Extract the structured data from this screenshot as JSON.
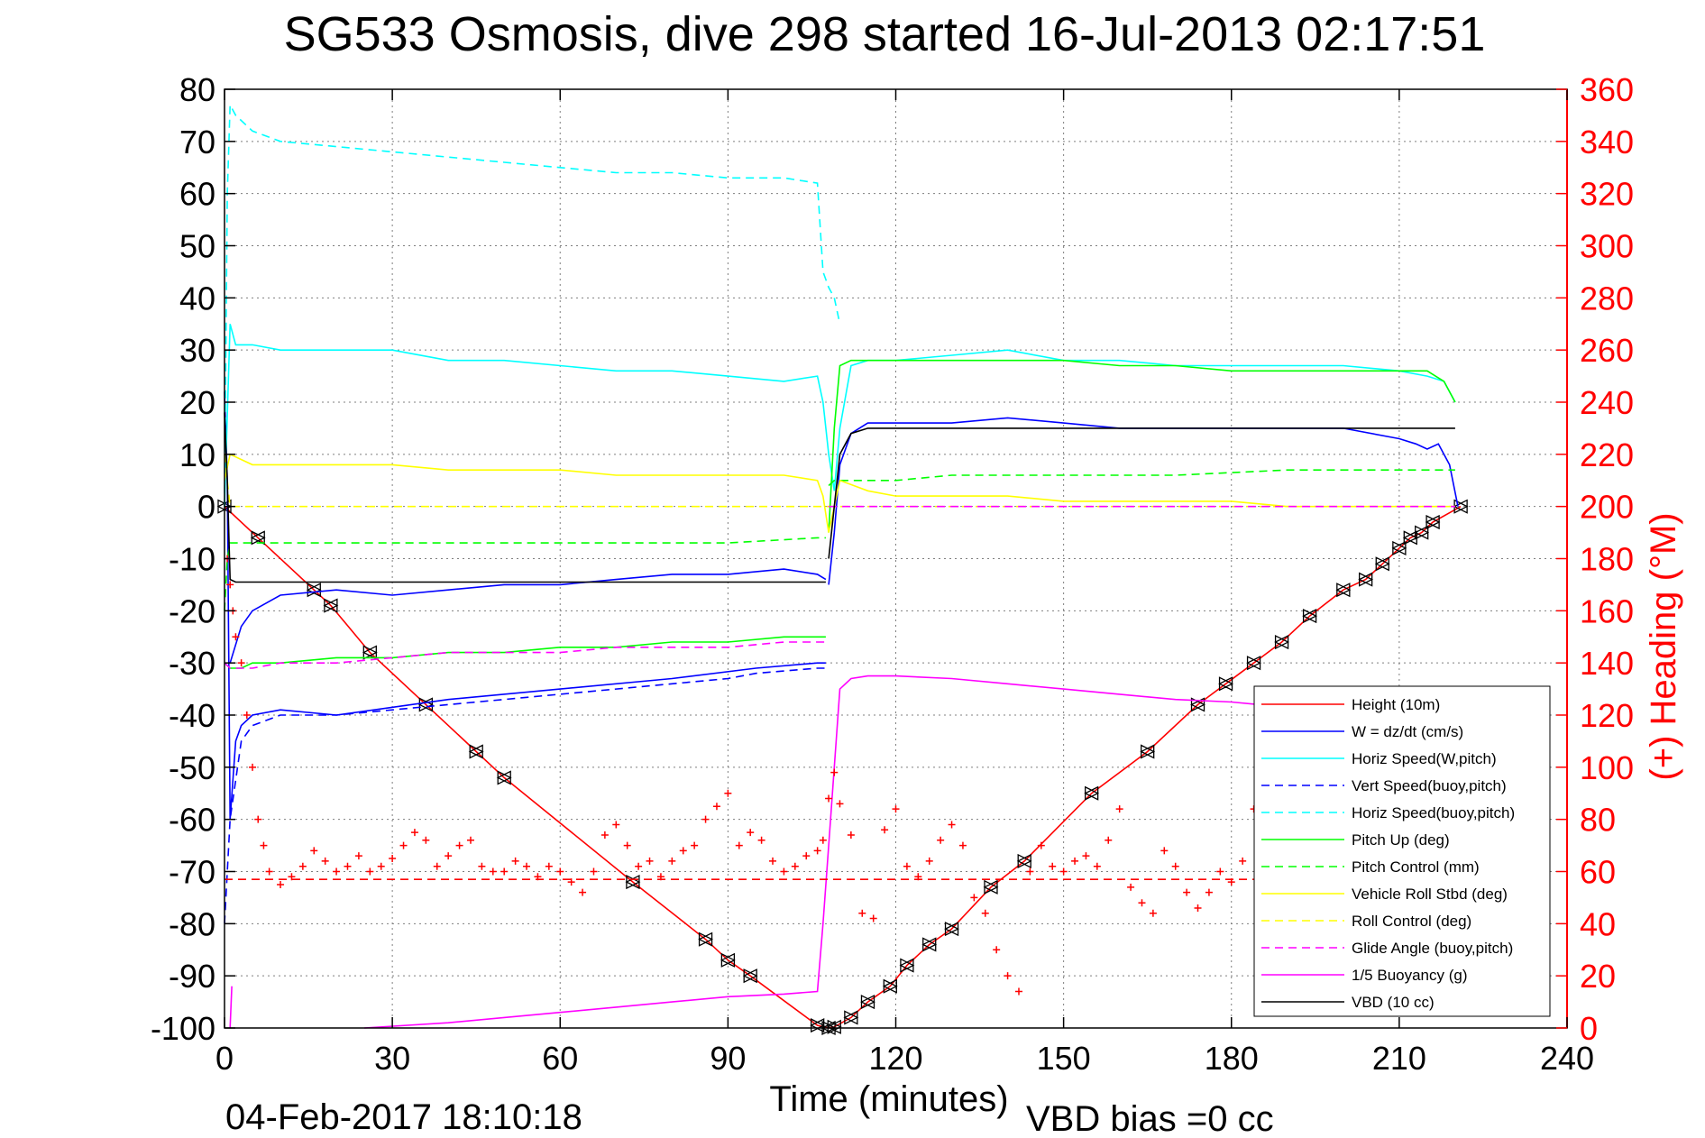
{
  "chart_data": {
    "type": "line",
    "title": "SG533 Osmosis, dive 298 started 16-Jul-2013 02:17:51",
    "xlabel": "Time (minutes)",
    "ylabel": "",
    "y2label": "(+) Heading (°M)",
    "footer_date": "04-Feb-2017 18:10:18",
    "footer_vbd": "VBD bias =0 cc",
    "xlim": [
      0,
      240
    ],
    "ylim": [
      -100,
      80
    ],
    "y2lim": [
      0,
      360
    ],
    "xticks": [
      0,
      30,
      60,
      90,
      120,
      150,
      180,
      210,
      240
    ],
    "yticks": [
      80,
      70,
      60,
      50,
      40,
      30,
      20,
      10,
      0,
      -10,
      -20,
      -30,
      -40,
      -50,
      -60,
      -70,
      -80,
      -90,
      -100
    ],
    "y2ticks": [
      360,
      340,
      320,
      300,
      280,
      260,
      240,
      220,
      200,
      180,
      160,
      140,
      120,
      100,
      80,
      60,
      40,
      20,
      0
    ],
    "grid": true,
    "legend_position": "bottom-right",
    "colors": {
      "axis": "#000000",
      "heading_axis": "#ff0000",
      "grid": "#7f7f7f"
    },
    "series": [
      {
        "name": "Height (10m)",
        "color": "#ff0000",
        "style": "solid",
        "markers": "triangles",
        "x": [
          0,
          6,
          16,
          19,
          26,
          36,
          45,
          50,
          73,
          86,
          90,
          94,
          106,
          108,
          109,
          112,
          115,
          119,
          122,
          126,
          130,
          137,
          143,
          155,
          165,
          174,
          179,
          184,
          189,
          194,
          200,
          204,
          207,
          210,
          212,
          214,
          216,
          221
        ],
        "y": [
          0,
          -6,
          -16,
          -19,
          -28,
          -38,
          -47,
          -52,
          -72,
          -83,
          -87,
          -90,
          -99.5,
          -100,
          -99.8,
          -98,
          -95,
          -92,
          -88,
          -84,
          -81,
          -73,
          -68,
          -55,
          -47,
          -38,
          -34,
          -30,
          -26,
          -21,
          -16,
          -14,
          -11,
          -8,
          -6,
          -5,
          -3,
          0
        ]
      },
      {
        "name": "W = dz/dt (cm/s)",
        "color": "#0000ff",
        "style": "solid",
        "segments": [
          {
            "x": [
              0,
              0.5,
              1,
              2,
              3,
              5,
              10,
              20,
              40,
              60,
              80,
              95,
              106,
              107.5
            ],
            "y": [
              22,
              5,
              -60,
              -45,
              -42,
              -40,
              -39,
              -40,
              -37,
              -35,
              -33,
              -31,
              -30,
              -30
            ]
          },
          {
            "x": [
              1,
              3,
              5,
              10,
              20,
              30,
              40,
              50,
              60,
              70,
              80,
              90,
              100,
              106,
              107.5
            ],
            "y": [
              -30,
              -23,
              -20,
              -17,
              -16,
              -17,
              -16,
              -15,
              -15,
              -14,
              -13,
              -13,
              -12,
              -13,
              -14
            ]
          },
          {
            "x": [
              108,
              109,
              110,
              112,
              115,
              120,
              130,
              140,
              150,
              160,
              170,
              180,
              190,
              200,
              210,
              213,
              215,
              217,
              219,
              220.5
            ],
            "y": [
              -15,
              -5,
              8,
              14,
              16,
              16,
              16,
              17,
              16,
              15,
              15,
              15,
              15,
              15,
              13,
              12,
              11,
              12,
              8,
              0
            ]
          }
        ]
      },
      {
        "name": "Horiz Speed(W,pitch)",
        "color": "#00ffff",
        "style": "solid",
        "x": [
          0,
          1,
          2,
          5,
          10,
          20,
          30,
          40,
          50,
          60,
          70,
          80,
          90,
          100,
          106,
          107,
          108,
          109,
          110,
          112,
          115,
          120,
          130,
          140,
          150,
          160,
          170,
          180,
          190,
          200,
          210,
          215,
          218,
          220
        ],
        "y": [
          0,
          35,
          31,
          31,
          30,
          30,
          30,
          28,
          28,
          27,
          26,
          26,
          25,
          24,
          25,
          20,
          10,
          3,
          15,
          27,
          28,
          28,
          29,
          30,
          28,
          28,
          27,
          27,
          27,
          27,
          26,
          25,
          24,
          20
        ]
      },
      {
        "name": "Vert Speed(buoy,pitch)",
        "color": "#0000ff",
        "style": "dashed",
        "x": [
          0,
          1,
          3,
          5,
          10,
          20,
          40,
          60,
          80,
          90,
          95,
          106,
          107.5
        ],
        "y": [
          -80,
          -60,
          -45,
          -42,
          -40,
          -40,
          -38,
          -36,
          -34,
          -33,
          -32,
          -31,
          -31
        ]
      },
      {
        "name": "Horiz Speed(buoy,pitch)",
        "color": "#00ffff",
        "style": "dashed",
        "x": [
          0,
          0.5,
          1,
          2,
          5,
          10,
          20,
          30,
          40,
          50,
          60,
          70,
          80,
          90,
          100,
          106,
          107,
          108,
          109,
          110
        ],
        "y": [
          0,
          60,
          77,
          75,
          72,
          70,
          69,
          68,
          67,
          66,
          65,
          64,
          64,
          63,
          63,
          62,
          45,
          42,
          40,
          35
        ]
      },
      {
        "name": "Pitch Up (deg)",
        "color": "#00ff00",
        "style": "solid",
        "segments": [
          {
            "x": [
              0,
              1,
              3,
              5,
              10,
              20,
              30,
              40,
              50,
              60,
              70,
              80,
              90,
              100,
              106,
              107.5
            ],
            "y": [
              -30,
              -31,
              -31,
              -30,
              -30,
              -29,
              -29,
              -28,
              -28,
              -27,
              -27,
              -26,
              -26,
              -25,
              -25,
              -25
            ]
          },
          {
            "x": [
              108,
              109,
              110,
              112,
              115,
              120,
              130,
              140,
              150,
              160,
              170,
              180,
              190,
              200,
              210,
              215,
              218,
              220
            ],
            "y": [
              -5,
              15,
              27,
              28,
              28,
              28,
              28,
              28,
              28,
              27,
              27,
              26,
              26,
              26,
              26,
              26,
              24,
              20
            ]
          }
        ]
      },
      {
        "name": "Pitch Control (mm)",
        "color": "#00ff00",
        "style": "dashed",
        "segments": [
          {
            "x": [
              0,
              0.5,
              1,
              5,
              10,
              30,
              50,
              70,
              90,
              106,
              107.5
            ],
            "y": [
              -20,
              -10,
              -7,
              -7,
              -7,
              -7,
              -7,
              -7,
              -7,
              -6,
              -6
            ]
          },
          {
            "x": [
              108,
              109,
              110,
              120,
              130,
              150,
              170,
              190,
              210,
              220
            ],
            "y": [
              4,
              5,
              5,
              5,
              6,
              6,
              6,
              7,
              7,
              7
            ]
          }
        ]
      },
      {
        "name": "Vehicle Roll Stbd (deg)",
        "color": "#ffff00",
        "style": "solid",
        "x": [
          0,
          1,
          5,
          10,
          20,
          30,
          40,
          50,
          60,
          70,
          80,
          90,
          100,
          106,
          107,
          108,
          109,
          110,
          115,
          120,
          130,
          140,
          150,
          160,
          170,
          180,
          190,
          200,
          210,
          218,
          220
        ],
        "y": [
          5,
          10,
          8,
          8,
          8,
          8,
          7,
          7,
          7,
          6,
          6,
          6,
          6,
          5,
          2,
          -5,
          0,
          5,
          3,
          2,
          2,
          2,
          1,
          1,
          1,
          1,
          0,
          0,
          0,
          0,
          0
        ]
      },
      {
        "name": "Roll Control (deg)",
        "color": "#ffff00",
        "style": "dashed",
        "x": [
          0,
          1,
          2,
          5,
          10,
          30,
          50,
          70,
          90,
          106,
          108,
          110,
          120,
          140,
          160,
          180,
          200,
          220
        ],
        "y": [
          10,
          0,
          0,
          0,
          0,
          0,
          0,
          0,
          0,
          0,
          0,
          0,
          0,
          0,
          0,
          0,
          0,
          0
        ]
      },
      {
        "name": "Glide Angle (buoy,pitch)",
        "color": "#ff00ff",
        "style": "dashed",
        "segments": [
          {
            "x": [
              0,
              1,
              3,
              5,
              10,
              20,
              30,
              40,
              50,
              60,
              70,
              80,
              90,
              100,
              106,
              107.5
            ],
            "y": [
              -30,
              -31,
              -31,
              -31,
              -30,
              -30,
              -29,
              -28,
              -28,
              -28,
              -27,
              -27,
              -27,
              -26,
              -26,
              -26
            ]
          },
          {
            "x": [
              108,
              110,
              120,
              150,
              180,
              210,
              220
            ],
            "y": [
              0,
              0,
              0,
              0,
              0,
              0,
              0
            ]
          }
        ]
      },
      {
        "name": "1/5 Buoyancy (g)",
        "color": "#ff00ff",
        "style": "solid",
        "segments": [
          {
            "x": [
              1,
              1.3
            ],
            "y": [
              -100,
              -92
            ]
          },
          {
            "x": [
              25,
              40,
              50,
              60,
              70,
              80,
              90,
              100,
              106,
              107,
              108,
              109,
              110,
              112,
              115,
              120,
              130,
              140,
              150,
              160,
              170,
              180,
              185
            ],
            "y": [
              -100,
              -99,
              -98,
              -97,
              -96,
              -95,
              -94,
              -93.5,
              -93,
              -80,
              -65,
              -50,
              -35,
              -33,
              -32.5,
              -32.5,
              -33,
              -34,
              -35,
              -36,
              -37,
              -37.5,
              -38
            ]
          }
        ]
      },
      {
        "name": "VBD (10 cc)",
        "color": "#000000",
        "style": "solid",
        "segments": [
          {
            "x": [
              0,
              0.5,
              1,
              2,
              5,
              10,
              30,
              50,
              70,
              90,
              106,
              107.5
            ],
            "y": [
              18,
              5,
              -14,
              -14.5,
              -14.5,
              -14.5,
              -14.5,
              -14.5,
              -14.5,
              -14.5,
              -14.5,
              -14.5
            ]
          },
          {
            "x": [
              108,
              109,
              110,
              112,
              115,
              120,
              150,
              180,
              210,
              220
            ],
            "y": [
              -10,
              0,
              10,
              14,
              15,
              15,
              15,
              15,
              15,
              15
            ]
          }
        ]
      }
    ],
    "extra_series": [
      {
        "name": "Heading +",
        "axis": "y2",
        "color": "#ff0000",
        "style": "markers",
        "x": [
          0.5,
          1,
          1.5,
          2,
          3,
          4,
          5,
          6,
          7,
          8,
          10,
          12,
          14,
          16,
          18,
          20,
          22,
          24,
          26,
          28,
          30,
          32,
          34,
          36,
          38,
          40,
          42,
          44,
          46,
          48,
          50,
          52,
          54,
          56,
          58,
          60,
          62,
          64,
          66,
          68,
          70,
          72,
          74,
          76,
          78,
          80,
          82,
          84,
          86,
          88,
          90,
          92,
          94,
          96,
          98,
          100,
          102,
          104,
          106,
          107,
          108,
          109,
          110,
          112,
          114,
          116,
          118,
          120,
          122,
          124,
          126,
          128,
          130,
          132,
          134,
          136,
          138,
          140,
          142,
          144,
          146,
          148,
          150,
          152,
          154,
          156,
          158,
          160,
          162,
          164,
          166,
          168,
          170,
          172,
          174,
          176,
          178,
          180,
          182,
          184
        ],
        "y": [
          180,
          170,
          160,
          150,
          140,
          120,
          100,
          80,
          70,
          60,
          55,
          58,
          62,
          68,
          64,
          60,
          62,
          66,
          60,
          62,
          65,
          70,
          75,
          72,
          62,
          66,
          70,
          72,
          62,
          60,
          60,
          64,
          62,
          58,
          62,
          60,
          56,
          52,
          60,
          74,
          78,
          70,
          62,
          64,
          58,
          64,
          68,
          70,
          80,
          85,
          90,
          70,
          75,
          72,
          64,
          60,
          62,
          66,
          68,
          72,
          88,
          98,
          86,
          74,
          44,
          42,
          76,
          84,
          62,
          58,
          64,
          72,
          78,
          70,
          50,
          44,
          30,
          20,
          14,
          60,
          70,
          62,
          60,
          64,
          66,
          62,
          72,
          84,
          54,
          48,
          44,
          68,
          62,
          52,
          46,
          52,
          60,
          56,
          64,
          84
        ]
      },
      {
        "name": "Heading target",
        "axis": "y2",
        "color": "#ff0000",
        "style": "dashed",
        "x": [
          0,
          185
        ],
        "y": [
          57,
          57
        ]
      }
    ]
  }
}
